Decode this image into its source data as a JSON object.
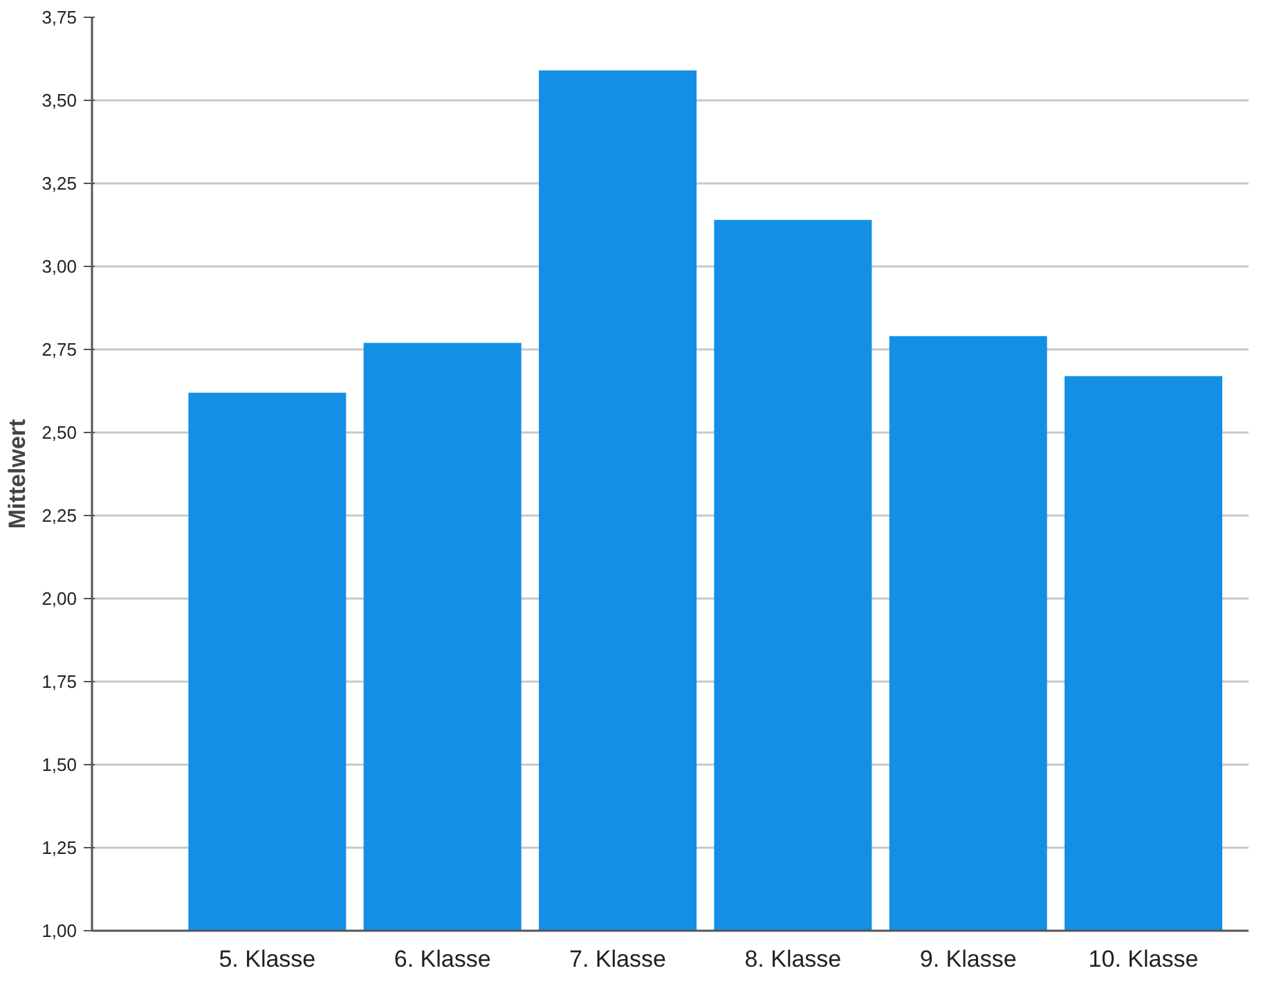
{
  "chart_data": {
    "type": "bar",
    "ylabel": "Mittelwert",
    "categories": [
      "5. Klasse",
      "6. Klasse",
      "7. Klasse",
      "8. Klasse",
      "9. Klasse",
      "10. Klasse"
    ],
    "values": [
      2.62,
      2.77,
      3.59,
      3.14,
      2.79,
      2.67
    ],
    "color": "#1390e6",
    "ylim": [
      1.0,
      3.75
    ],
    "yticks": [
      {
        "value": 1.0,
        "label": "1,00"
      },
      {
        "value": 1.25,
        "label": "1,25"
      },
      {
        "value": 1.5,
        "label": "1,50"
      },
      {
        "value": 1.75,
        "label": "1,75"
      },
      {
        "value": 2.0,
        "label": "2,00"
      },
      {
        "value": 2.25,
        "label": "2,25"
      },
      {
        "value": 2.5,
        "label": "2,50"
      },
      {
        "value": 2.75,
        "label": "2,75"
      },
      {
        "value": 3.0,
        "label": "3,00"
      },
      {
        "value": 3.25,
        "label": "3,25"
      },
      {
        "value": 3.5,
        "label": "3,50"
      },
      {
        "value": 3.75,
        "label": "3,75"
      }
    ],
    "grid": "y"
  }
}
